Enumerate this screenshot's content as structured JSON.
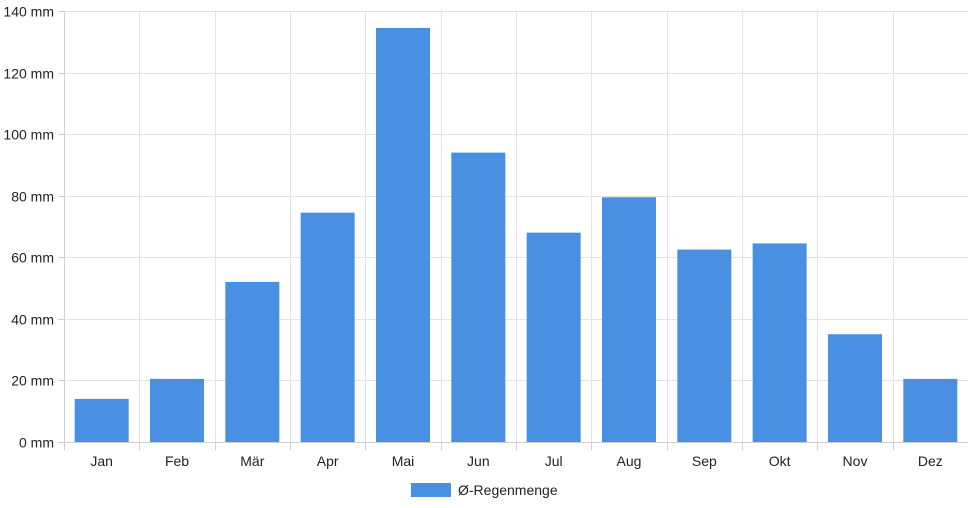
{
  "chart_data": {
    "type": "bar",
    "title": "",
    "xlabel": "",
    "ylabel": "",
    "categories": [
      "Jan",
      "Feb",
      "Mär",
      "Apr",
      "Mai",
      "Jun",
      "Jul",
      "Aug",
      "Sep",
      "Okt",
      "Nov",
      "Dez"
    ],
    "series": [
      {
        "name": "Ø-Regenmenge",
        "color": "#4a90e2",
        "values": [
          14,
          20.5,
          52,
          74.5,
          134.5,
          94,
          68,
          79.5,
          62.5,
          64.5,
          35,
          20.5
        ]
      }
    ],
    "ylim": [
      0,
      140
    ],
    "y_ticks": [
      0,
      20,
      40,
      60,
      80,
      100,
      120,
      140
    ],
    "y_tick_unit": " mm",
    "grid": true,
    "legend_position": "bottom"
  }
}
